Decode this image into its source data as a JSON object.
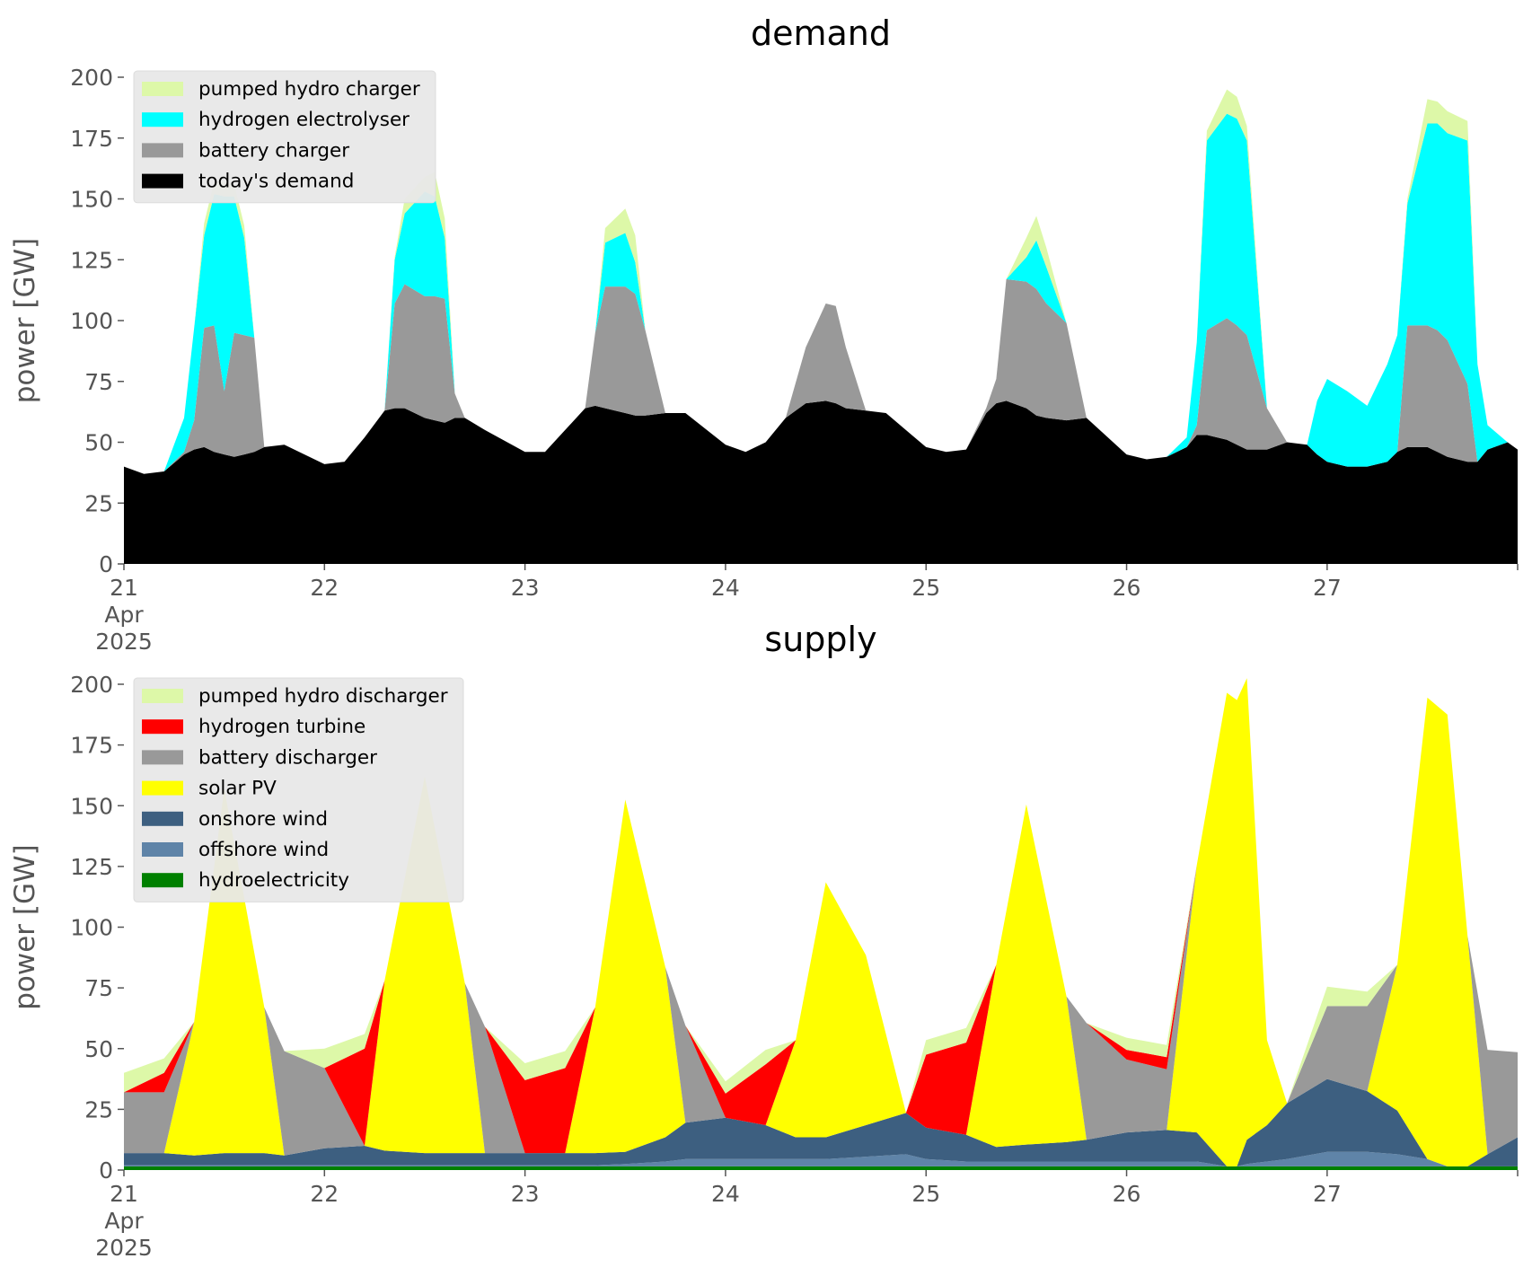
{
  "chart_data": [
    {
      "type": "area",
      "title": "demand",
      "ylabel": "power [GW]",
      "xlabel": "",
      "ylim": [
        0,
        200
      ],
      "yticks": [
        "0",
        "25",
        "50",
        "75",
        "100",
        "125",
        "150",
        "175",
        "200"
      ],
      "xticks": [
        {
          "x": 21,
          "lines": [
            "21",
            "Apr",
            "2025"
          ]
        },
        {
          "x": 22,
          "lines": [
            "22"
          ]
        },
        {
          "x": 23,
          "lines": [
            "23"
          ]
        },
        {
          "x": 24,
          "lines": [
            "24"
          ]
        },
        {
          "x": 25,
          "lines": [
            "25"
          ]
        },
        {
          "x": 26,
          "lines": [
            "26"
          ]
        },
        {
          "x": 27,
          "lines": [
            "27"
          ]
        }
      ],
      "xlim": [
        21,
        27.95
      ],
      "x": [
        21.0,
        21.1,
        21.2,
        21.3,
        21.35,
        21.4,
        21.45,
        21.5,
        21.55,
        21.6,
        21.65,
        21.7,
        21.8,
        22.0,
        22.1,
        22.2,
        22.3,
        22.35,
        22.4,
        22.5,
        22.55,
        22.6,
        22.65,
        22.7,
        22.8,
        23.0,
        23.1,
        23.2,
        23.3,
        23.35,
        23.4,
        23.5,
        23.55,
        23.6,
        23.7,
        23.8,
        24.0,
        24.1,
        24.2,
        24.3,
        24.4,
        24.5,
        24.55,
        24.6,
        24.7,
        24.8,
        25.0,
        25.1,
        25.2,
        25.3,
        25.35,
        25.4,
        25.5,
        25.55,
        25.6,
        25.7,
        25.8,
        26.0,
        26.1,
        26.2,
        26.3,
        26.35,
        26.4,
        26.5,
        26.55,
        26.6,
        26.7,
        26.8,
        26.9,
        26.95,
        27.0,
        27.1,
        27.2,
        27.3,
        27.35,
        27.4,
        27.5,
        27.55,
        27.6,
        27.7,
        27.75,
        27.8,
        27.9,
        27.95
      ],
      "series": [
        {
          "name": "today's demand",
          "color": "#000000",
          "values": [
            40,
            37,
            38,
            45,
            47,
            48,
            46,
            45,
            44,
            45,
            46,
            48,
            49,
            41,
            42,
            52,
            63,
            64,
            64,
            60,
            59,
            58,
            60,
            60,
            55,
            46,
            46,
            55,
            64,
            65,
            64,
            62,
            61,
            61,
            62,
            62,
            49,
            46,
            50,
            60,
            66,
            67,
            66,
            64,
            63,
            62,
            48,
            46,
            47,
            62,
            66,
            67,
            64,
            61,
            60,
            59,
            60,
            45,
            43,
            44,
            48,
            53,
            53,
            51,
            49,
            47,
            47,
            50,
            49,
            45,
            42,
            40,
            40,
            42,
            46,
            48,
            48,
            46,
            44,
            42,
            42,
            47,
            50,
            47
          ]
        },
        {
          "name": "battery charger",
          "color": "#999999",
          "values": [
            0,
            0,
            0,
            1,
            12,
            49,
            52,
            26,
            51,
            49,
            47,
            0,
            0,
            0,
            0,
            0,
            0,
            43,
            51,
            50,
            51,
            51,
            10,
            0,
            0,
            0,
            0,
            0,
            0,
            30,
            50,
            52,
            50,
            35,
            0,
            0,
            0,
            0,
            0,
            0,
            23,
            40,
            40,
            25,
            0,
            0,
            0,
            0,
            0,
            2,
            10,
            50,
            52,
            52,
            47,
            40,
            0,
            0,
            0,
            0,
            0,
            4,
            43,
            50,
            49,
            47,
            17,
            0,
            0,
            0,
            0,
            0,
            0,
            0,
            0,
            50,
            50,
            50,
            48,
            32,
            0,
            0,
            0,
            0
          ]
        },
        {
          "name": "hydrogen electrolyser",
          "color": "#00ffff",
          "values": [
            0,
            0,
            0,
            14,
            38,
            38,
            54,
            80,
            56,
            40,
            0,
            0,
            0,
            0,
            0,
            0,
            0,
            18,
            29,
            43,
            41,
            25,
            0,
            0,
            0,
            0,
            0,
            0,
            0,
            0,
            18,
            22,
            13,
            0,
            0,
            0,
            0,
            0,
            0,
            0,
            0,
            0,
            0,
            0,
            0,
            0,
            0,
            0,
            0,
            0,
            0,
            0,
            10,
            20,
            15,
            0,
            0,
            0,
            0,
            0,
            4,
            34,
            78,
            84,
            85,
            80,
            0,
            0,
            0,
            22,
            34,
            31,
            25,
            40,
            48,
            50,
            83,
            85,
            85,
            100,
            40,
            10,
            0,
            0
          ]
        },
        {
          "name": "pumped hydro charger",
          "color": "#ddf8a8",
          "values": [
            0,
            0,
            0,
            0,
            0,
            5,
            5,
            6,
            5,
            5,
            0,
            0,
            0,
            0,
            0,
            0,
            0,
            1,
            6,
            6,
            10,
            8,
            0,
            0,
            0,
            0,
            0,
            0,
            0,
            0,
            6,
            10,
            11,
            0,
            0,
            0,
            0,
            0,
            0,
            0,
            0,
            0,
            0,
            0,
            0,
            0,
            0,
            0,
            0,
            0,
            0,
            0,
            8,
            10,
            8,
            0,
            0,
            0,
            0,
            0,
            0,
            0,
            4,
            10,
            9,
            6,
            0,
            0,
            0,
            0,
            0,
            0,
            0,
            0,
            0,
            2,
            10,
            9,
            9,
            8,
            0,
            0,
            0,
            0
          ]
        }
      ],
      "legend": [
        "pumped hydro charger",
        "hydrogen electrolyser",
        "battery charger",
        "today's demand"
      ],
      "legend_placement": "top-left",
      "grid": false
    },
    {
      "type": "area",
      "title": "supply",
      "ylabel": "power [GW]",
      "xlabel": "",
      "ylim": [
        0,
        200
      ],
      "yticks": [
        "0",
        "25",
        "50",
        "75",
        "100",
        "125",
        "150",
        "175",
        "200"
      ],
      "xticks": [
        {
          "x": 21,
          "lines": [
            "21",
            "Apr",
            "2025"
          ]
        },
        {
          "x": 22,
          "lines": [
            "22"
          ]
        },
        {
          "x": 23,
          "lines": [
            "23"
          ]
        },
        {
          "x": 24,
          "lines": [
            "24"
          ]
        },
        {
          "x": 25,
          "lines": [
            "25"
          ]
        },
        {
          "x": 26,
          "lines": [
            "26"
          ]
        },
        {
          "x": 27,
          "lines": [
            "27"
          ]
        }
      ],
      "xlim": [
        21,
        27.95
      ],
      "x": [
        21.0,
        21.2,
        21.35,
        21.5,
        21.7,
        21.8,
        22.0,
        22.2,
        22.3,
        22.5,
        22.7,
        22.8,
        23.0,
        23.2,
        23.35,
        23.5,
        23.7,
        23.8,
        24.0,
        24.2,
        24.35,
        24.5,
        24.7,
        24.9,
        25.0,
        25.2,
        25.35,
        25.5,
        25.7,
        25.8,
        26.0,
        26.2,
        26.35,
        26.5,
        26.55,
        26.6,
        26.7,
        26.8,
        27.0,
        27.2,
        27.35,
        27.5,
        27.6,
        27.7,
        27.8,
        27.95
      ],
      "series": [
        {
          "name": "hydroelectricity",
          "color": "#008000",
          "values": [
            1.5,
            1.5,
            1.5,
            1.5,
            1.5,
            1.5,
            1.5,
            1.5,
            1.5,
            1.5,
            1.5,
            1.5,
            1.5,
            1.5,
            1.5,
            1.5,
            1.5,
            1.5,
            1.5,
            1.5,
            1.5,
            1.5,
            1.5,
            1.5,
            1.5,
            1.5,
            1.5,
            1.5,
            1.5,
            1.5,
            1.5,
            1.5,
            1.5,
            1.5,
            1.5,
            1.5,
            1.5,
            1.5,
            1.5,
            1.5,
            1.5,
            1.5,
            1.5,
            1.5,
            1.5,
            1.5
          ]
        },
        {
          "name": "offshore wind",
          "color": "#5f84a8",
          "values": [
            0.5,
            0.5,
            0.5,
            0.5,
            0.5,
            0.5,
            0.5,
            0.5,
            0.5,
            0.5,
            0.5,
            0.5,
            0.5,
            0.5,
            0.5,
            1,
            2,
            3,
            3,
            3,
            3,
            3,
            4,
            5,
            3,
            2,
            2,
            2,
            2,
            2,
            2,
            2,
            2,
            0,
            0,
            1,
            2,
            3,
            6,
            6,
            5,
            3,
            0,
            0,
            0,
            0
          ]
        },
        {
          "name": "onshore wind",
          "color": "#3d5f80",
          "values": [
            5,
            5,
            4,
            5,
            5,
            4,
            7,
            8,
            6,
            5,
            5,
            5,
            5,
            5,
            5,
            5,
            10,
            15,
            17,
            14,
            9,
            9,
            13,
            17,
            13,
            11,
            6,
            7,
            8,
            9,
            12,
            13,
            12,
            0,
            0,
            10,
            15,
            23,
            30,
            25,
            18,
            0,
            0,
            0,
            5,
            12
          ]
        },
        {
          "name": "solar PV",
          "color": "#ffff00",
          "values": [
            0,
            0,
            55,
            150,
            60,
            0,
            0,
            0,
            70,
            155,
            70,
            0,
            0,
            0,
            60,
            145,
            70,
            0,
            0,
            0,
            40,
            105,
            70,
            0,
            0,
            0,
            75,
            140,
            60,
            0,
            0,
            0,
            110,
            195,
            192,
            190,
            35,
            0,
            0,
            0,
            60,
            190,
            186,
            95,
            0,
            0
          ]
        },
        {
          "name": "battery discharger",
          "color": "#999999",
          "values": [
            25,
            25,
            0,
            0,
            0,
            43,
            33,
            0,
            0,
            0,
            0,
            52,
            0,
            0,
            0,
            0,
            0,
            40,
            0,
            0,
            0,
            0,
            0,
            0,
            0,
            0,
            0,
            0,
            0,
            48,
            30,
            25,
            0,
            0,
            0,
            0,
            0,
            0,
            30,
            35,
            0,
            0,
            0,
            0,
            43,
            35
          ]
        },
        {
          "name": "hydrogen turbine",
          "color": "#ff0000",
          "values": [
            0,
            8,
            0,
            0,
            0,
            0,
            0,
            40,
            0,
            0,
            0,
            0,
            30,
            35,
            0,
            0,
            0,
            0,
            10,
            25,
            0,
            0,
            0,
            0,
            30,
            38,
            0,
            0,
            0,
            0,
            4,
            5,
            0,
            0,
            0,
            0,
            0,
            0,
            0,
            0,
            0,
            0,
            0,
            0,
            0,
            0
          ]
        },
        {
          "name": "pumped hydro discharger",
          "color": "#ddf8a8",
          "values": [
            8,
            6,
            0,
            0,
            0,
            0,
            8,
            6,
            0,
            0,
            0,
            0,
            7,
            7,
            0,
            0,
            0,
            0,
            5,
            6,
            0,
            0,
            0,
            0,
            6,
            6,
            0,
            0,
            0,
            0,
            5,
            5,
            0,
            0,
            0,
            0,
            0,
            0,
            8,
            6,
            0,
            0,
            0,
            0,
            0,
            0
          ]
        }
      ],
      "legend": [
        "pumped hydro discharger",
        "hydrogen turbine",
        "battery discharger",
        "solar PV",
        "onshore wind",
        "offshore wind",
        "hydroelectricity"
      ],
      "legend_placement": "top-left",
      "grid": false
    }
  ]
}
